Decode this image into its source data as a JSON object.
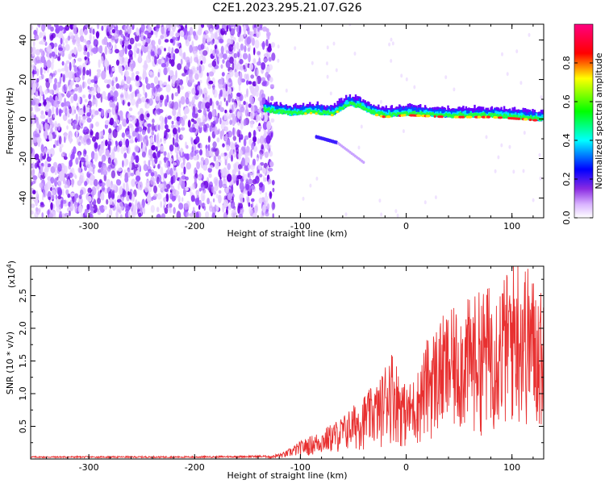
{
  "title": "C2E1.2023.295.21.07.G26",
  "colors": {
    "snr_line": "#e83030",
    "spectrum_sparse": "#7a1cf0",
    "spectrum_core_gradient": [
      "#6a00ff",
      "#0040ff",
      "#00ffff",
      "#00ff40",
      "#ff3030"
    ]
  },
  "chart_data": [
    {
      "type": "heatmap",
      "xlabel": "Height of straight line (km)",
      "ylabel": "Frequency (Hz)",
      "xlim": [
        -355,
        130
      ],
      "ylim": [
        -50,
        48
      ],
      "xticks": [
        -300,
        -200,
        -100,
        0,
        100
      ],
      "yticks": [
        -40,
        -20,
        0,
        20,
        40
      ],
      "xtick_labels": [
        "-300",
        "-200",
        "-100",
        "0",
        "100"
      ],
      "ytick_labels": [
        "-40",
        "-20",
        "0",
        "20",
        "40"
      ],
      "colorbar": {
        "label": "Normalized spectral amplitude",
        "range": [
          0,
          1
        ],
        "ticks": [
          0.0,
          0.2,
          0.4,
          0.6,
          0.8
        ],
        "tick_labels": [
          "0.0",
          "0.2",
          "0.4",
          "0.6",
          "0.8"
        ],
        "colormap": [
          "#ffffff",
          "#8a2be2",
          "#0000ff",
          "#00ffff",
          "#00ff00",
          "#ffff00",
          "#ff0000",
          "#ff0080"
        ]
      },
      "features": {
        "noise_region_x": [
          -355,
          -130
        ],
        "signal_band_x": [
          -135,
          130
        ],
        "signal_band_center_hz": [
          [
            -135,
            4
          ],
          [
            -110,
            2
          ],
          [
            -90,
            3
          ],
          [
            -70,
            2
          ],
          [
            -55,
            7
          ],
          [
            -45,
            6
          ],
          [
            -35,
            3
          ],
          [
            -20,
            1
          ],
          [
            0,
            2
          ],
          [
            40,
            1
          ],
          [
            80,
            1
          ],
          [
            110,
            0
          ],
          [
            130,
            -1
          ]
        ],
        "secondary_trace": [
          [
            -85,
            -9
          ],
          [
            -65,
            -12
          ],
          [
            -40,
            -22
          ]
        ]
      },
      "grid": false
    },
    {
      "type": "line",
      "xlabel": "Height of straight line (km)",
      "ylabel": "SNR (10 * v/v)",
      "y_multiplier": "(x10",
      "y_multiplier_exp": "4",
      "y_multiplier_close": ")",
      "xlim": [
        -355,
        130
      ],
      "ylim": [
        0,
        2.95
      ],
      "xticks": [
        -300,
        -200,
        -100,
        0,
        100
      ],
      "yticks": [
        0.5,
        1.0,
        1.5,
        2.0,
        2.5
      ],
      "xtick_labels": [
        "-300",
        "-200",
        "-100",
        "0",
        "100"
      ],
      "ytick_labels": [
        "0.5",
        "1.0",
        "1.5",
        "2.0",
        "2.5"
      ],
      "envelope": [
        [
          -355,
          0.03
        ],
        [
          -200,
          0.03
        ],
        [
          -130,
          0.04
        ],
        [
          -115,
          0.1
        ],
        [
          -100,
          0.25
        ],
        [
          -80,
          0.4
        ],
        [
          -60,
          0.6
        ],
        [
          -40,
          0.9
        ],
        [
          -25,
          1.1
        ],
        [
          -15,
          1.6
        ],
        [
          -5,
          1.2
        ],
        [
          0,
          1.0
        ],
        [
          10,
          1.2
        ],
        [
          20,
          1.7
        ],
        [
          35,
          2.0
        ],
        [
          55,
          2.2
        ],
        [
          75,
          2.4
        ],
        [
          95,
          2.6
        ],
        [
          105,
          2.9
        ],
        [
          115,
          2.7
        ],
        [
          130,
          2.3
        ]
      ],
      "grid": false
    }
  ]
}
